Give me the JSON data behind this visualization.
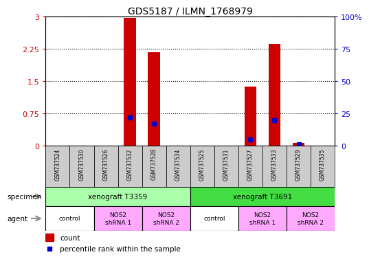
{
  "title": "GDS5187 / ILMN_1768979",
  "samples": [
    "GSM737524",
    "GSM737530",
    "GSM737526",
    "GSM737532",
    "GSM737528",
    "GSM737534",
    "GSM737525",
    "GSM737531",
    "GSM737527",
    "GSM737533",
    "GSM737529",
    "GSM737535"
  ],
  "count_values": [
    0,
    0,
    0,
    2.97,
    2.18,
    0,
    0,
    0,
    1.37,
    2.36,
    0.07,
    0
  ],
  "percentile_values": [
    0,
    0,
    0,
    22,
    17,
    0,
    0,
    0,
    5,
    20,
    1,
    0
  ],
  "ylim_left": [
    0,
    3
  ],
  "ylim_right": [
    0,
    100
  ],
  "yticks_left": [
    0,
    0.75,
    1.5,
    2.25,
    3
  ],
  "yticks_right": [
    0,
    25,
    50,
    75,
    100
  ],
  "ytick_labels_left": [
    "0",
    "0.75",
    "1.5",
    "2.25",
    "3"
  ],
  "ytick_labels_right": [
    "0",
    "25",
    "50",
    "75",
    "100%"
  ],
  "bar_color": "#cc0000",
  "percentile_color": "#0000cc",
  "specimen_groups": [
    {
      "label": "xenograft T3359",
      "start": 0,
      "end": 5,
      "color": "#aaffaa"
    },
    {
      "label": "xenograft T3691",
      "start": 6,
      "end": 11,
      "color": "#44dd44"
    }
  ],
  "agent_groups": [
    {
      "label": "control",
      "start": 0,
      "end": 1,
      "color": "#ffffff"
    },
    {
      "label": "NOS2\nshRNA 1",
      "start": 2,
      "end": 3,
      "color": "#ffaaff"
    },
    {
      "label": "NOS2\nshRNA 2",
      "start": 4,
      "end": 5,
      "color": "#ffaaff"
    },
    {
      "label": "control",
      "start": 6,
      "end": 7,
      "color": "#ffffff"
    },
    {
      "label": "NOS2\nshRNA 1",
      "start": 8,
      "end": 9,
      "color": "#ffaaff"
    },
    {
      "label": "NOS2\nshRNA 2",
      "start": 10,
      "end": 11,
      "color": "#ffaaff"
    }
  ],
  "legend_count_label": "count",
  "legend_percentile_label": "percentile rank within the sample",
  "specimen_label": "specimen",
  "agent_label": "agent",
  "bar_width": 0.5,
  "bg_color": "#ffffff",
  "grid_color": "#000000",
  "tick_label_color_left": "#cc0000",
  "tick_label_color_right": "#0000cc",
  "sample_bg_color": "#cccccc",
  "arrow_color": "#888888"
}
